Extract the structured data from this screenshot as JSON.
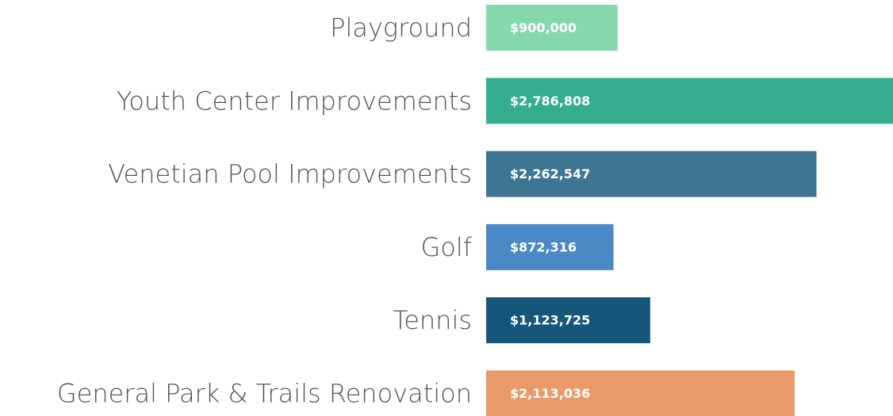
{
  "chart_data": {
    "type": "bar",
    "orientation": "horizontal",
    "categories": [
      "Playground",
      "Youth Center Improvements",
      "Venetian Pool Improvements",
      "Golf",
      "Tennis",
      "General Park & Trails Renovation"
    ],
    "values": [
      900000,
      2786808,
      2262547,
      872316,
      1123725,
      2113036
    ],
    "value_labels": [
      "$900,000",
      "$2,786,808",
      "$2,262,547",
      "$872,316",
      "$1,123,725",
      "$2,113,036"
    ],
    "colors": [
      "#85d8ae",
      "#35ae8e",
      "#3e7592",
      "#4a89c5",
      "#16567a",
      "#e89a68"
    ]
  }
}
